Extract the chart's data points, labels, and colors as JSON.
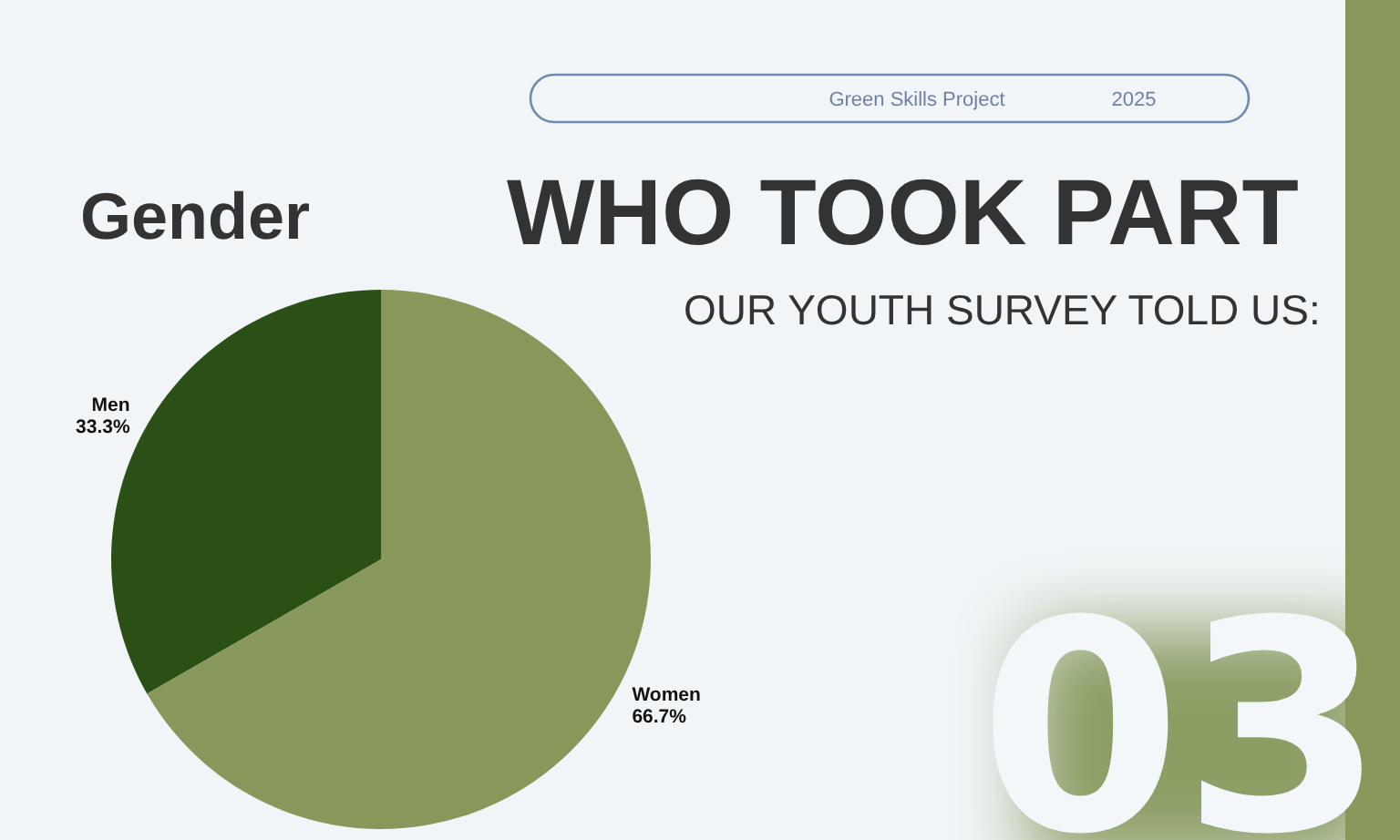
{
  "chart_data": {
    "type": "pie",
    "title": "WHO TOOK PART",
    "subtitle": "OUR YOUTH SURVEY TOLD US:",
    "annotations": [
      "Green Skills Project",
      "2025",
      "Gender",
      "03"
    ],
    "categories": [
      "Men",
      "Women"
    ],
    "values": [
      33.3,
      66.7
    ],
    "colors": [
      "#2a5016",
      "#87985a"
    ],
    "value_labels": [
      "33.3%",
      "66.7%"
    ]
  }
}
